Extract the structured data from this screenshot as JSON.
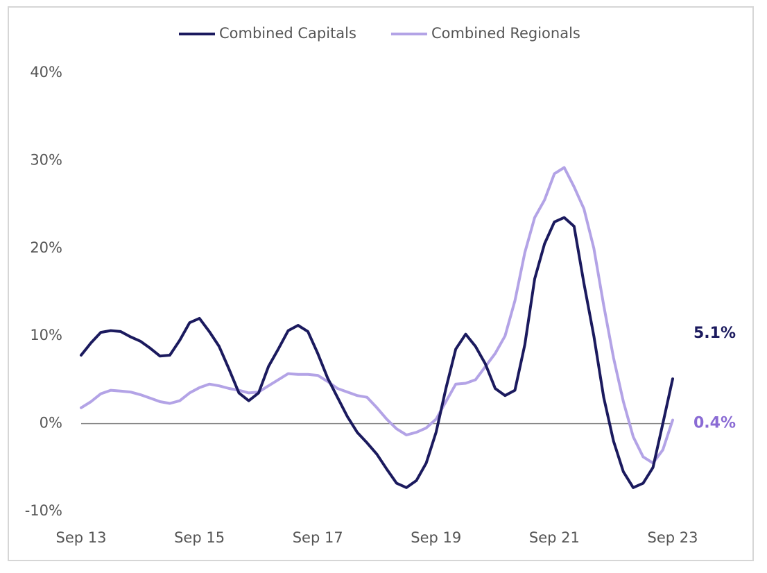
{
  "chart_data": {
    "type": "line",
    "categories": [
      "Sep 13",
      null,
      null,
      null,
      null,
      null,
      null,
      null,
      null,
      null,
      null,
      null,
      "Sep 15",
      null,
      null,
      null,
      null,
      null,
      null,
      null,
      null,
      null,
      null,
      null,
      "Sep 17",
      null,
      null,
      null,
      null,
      null,
      null,
      null,
      null,
      null,
      null,
      null,
      "Sep 19",
      null,
      null,
      null,
      null,
      null,
      null,
      null,
      null,
      null,
      null,
      null,
      "Sep 21",
      null,
      null,
      null,
      null,
      null,
      null,
      null,
      null,
      null,
      null,
      null,
      "Sep 23"
    ],
    "series": [
      {
        "name": "Combined Capitals",
        "color": "#1b1a5e",
        "end_label": "5.1%",
        "end_label_color": "#1b1a5e",
        "values": [
          7.8,
          9.2,
          10.4,
          10.6,
          10.5,
          9.9,
          9.4,
          8.6,
          7.7,
          7.8,
          9.5,
          11.5,
          12.0,
          10.5,
          8.8,
          6.2,
          3.5,
          2.6,
          3.5,
          6.5,
          8.5,
          10.6,
          11.2,
          10.5,
          8.0,
          5.2,
          3.0,
          0.8,
          -1.0,
          -2.2,
          -3.5,
          -5.2,
          -6.8,
          -7.3,
          -6.5,
          -4.5,
          -1.0,
          4.0,
          8.5,
          10.2,
          8.8,
          6.8,
          4.0,
          3.2,
          3.8,
          9.0,
          16.5,
          20.5,
          23.0,
          23.5,
          22.5,
          16.0,
          10.0,
          3.0,
          -2.0,
          -5.5,
          -7.3,
          -6.8,
          -5.0,
          0.0,
          5.1
        ]
      },
      {
        "name": "Combined Regionals",
        "color": "#b3a3e6",
        "end_label": "0.4%",
        "end_label_color": "#8a6bd4",
        "values": [
          1.8,
          2.5,
          3.4,
          3.8,
          3.7,
          3.6,
          3.3,
          2.9,
          2.5,
          2.3,
          2.6,
          3.5,
          4.1,
          4.5,
          4.3,
          4.0,
          3.8,
          3.5,
          3.6,
          4.3,
          5.0,
          5.7,
          5.6,
          5.6,
          5.5,
          4.8,
          4.0,
          3.6,
          3.2,
          3.0,
          1.8,
          0.5,
          -0.6,
          -1.3,
          -1.0,
          -0.5,
          0.5,
          2.5,
          4.5,
          4.6,
          5.0,
          6.5,
          8.0,
          10.0,
          14.0,
          19.5,
          23.5,
          25.5,
          28.5,
          29.2,
          27.0,
          24.5,
          20.0,
          13.5,
          7.5,
          2.5,
          -1.5,
          -3.8,
          -4.5,
          -3.0,
          0.4
        ]
      }
    ],
    "ylim": [
      -10,
      40
    ],
    "yticks": [
      {
        "value": -10,
        "label": "-10%"
      },
      {
        "value": 0,
        "label": "0%"
      },
      {
        "value": 10,
        "label": "10%"
      },
      {
        "value": 20,
        "label": "20%"
      },
      {
        "value": 30,
        "label": "30%"
      },
      {
        "value": 40,
        "label": "40%"
      }
    ],
    "zero_line": true,
    "legend": "top"
  }
}
